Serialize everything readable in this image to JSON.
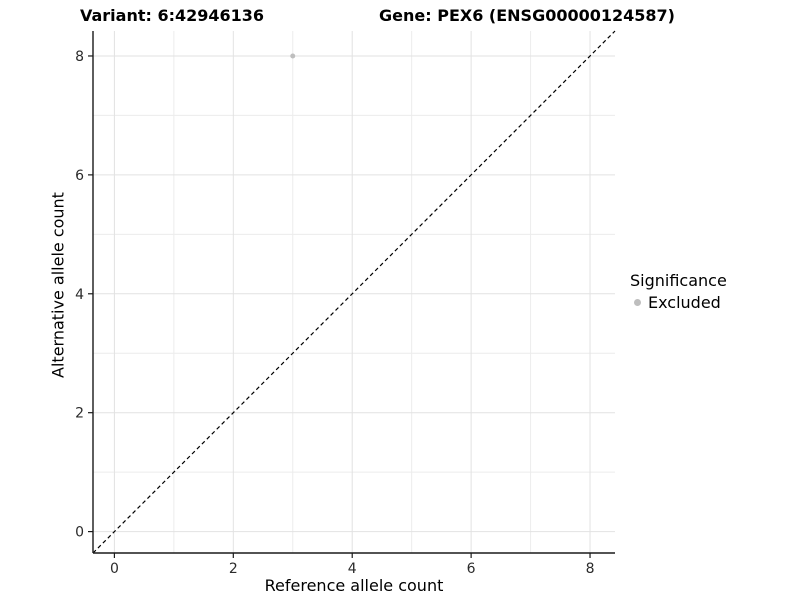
{
  "chart_data": {
    "type": "scatter",
    "title_variant": "Variant: 6:42946136",
    "title_gene": "Gene: PEX6 (ENSG00000124587)",
    "xlabel": "Reference allele count",
    "ylabel": "Alternative allele count",
    "xlim": [
      -0.36,
      8.42
    ],
    "ylim": [
      -0.36,
      8.42
    ],
    "x_ticks": [
      0,
      2,
      4,
      6,
      8
    ],
    "y_ticks": [
      0,
      2,
      4,
      6,
      8
    ],
    "x_minor_gridlines": [
      1,
      3,
      5,
      7
    ],
    "y_minor_gridlines": [
      1,
      3,
      5,
      7
    ],
    "grid": "on",
    "identity_line": {
      "equation": "y = x",
      "style": "dashed",
      "color": "#000000"
    },
    "series": [
      {
        "name": "Excluded",
        "color": "#bebebe",
        "points": [
          {
            "x": 3,
            "y": 8
          }
        ]
      }
    ],
    "legend": {
      "title": "Significance",
      "position": "right",
      "entries": [
        {
          "label": "Excluded",
          "color": "#bebebe"
        }
      ]
    },
    "colors": {
      "background": "#ffffff",
      "grid_major": "#e2e2e2",
      "grid_minor": "#ececec",
      "axis_line": "#1a1a1a",
      "tick_label": "#2b2b2b"
    }
  }
}
